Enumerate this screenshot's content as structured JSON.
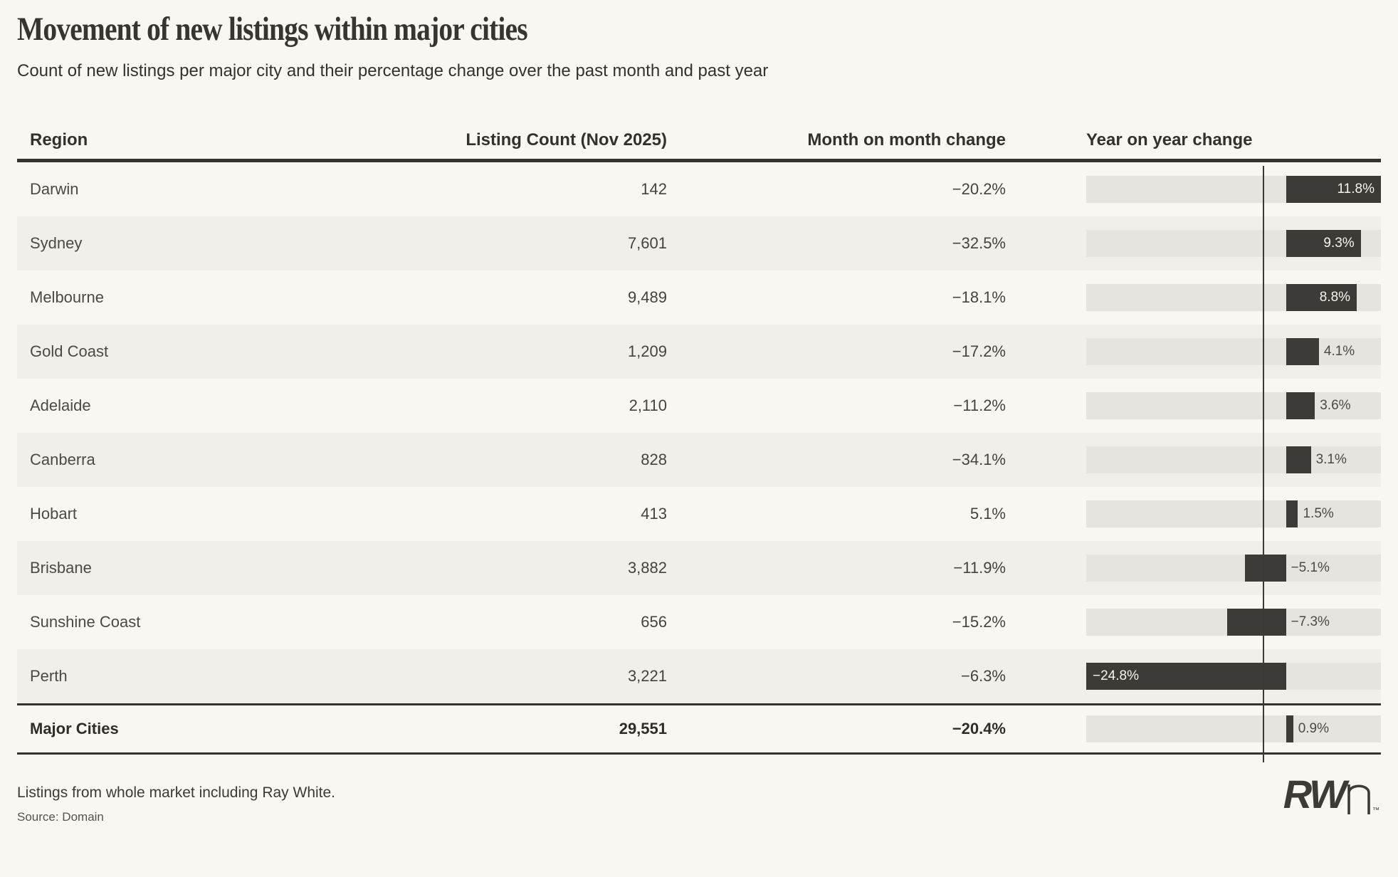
{
  "header": {
    "title": "Movement of new listings within major cities",
    "subtitle": "Count of new listings per major city and their percentage change over the past month and past year"
  },
  "table": {
    "columns": [
      "Region",
      "Listing Count (Nov 2025)",
      "Month on month change",
      "Year on year change"
    ],
    "rows": [
      {
        "region": "Darwin",
        "count": "142",
        "mom": "−20.2%",
        "yoy": 11.8,
        "yoy_label": "11.8%",
        "striped": false
      },
      {
        "region": "Sydney",
        "count": "7,601",
        "mom": "−32.5%",
        "yoy": 9.3,
        "yoy_label": "9.3%",
        "striped": true
      },
      {
        "region": "Melbourne",
        "count": "9,489",
        "mom": "−18.1%",
        "yoy": 8.8,
        "yoy_label": "8.8%",
        "striped": false
      },
      {
        "region": "Gold Coast",
        "count": "1,209",
        "mom": "−17.2%",
        "yoy": 4.1,
        "yoy_label": "4.1%",
        "striped": true
      },
      {
        "region": "Adelaide",
        "count": "2,110",
        "mom": "−11.2%",
        "yoy": 3.6,
        "yoy_label": "3.6%",
        "striped": false
      },
      {
        "region": "Canberra",
        "count": "828",
        "mom": "−34.1%",
        "yoy": 3.1,
        "yoy_label": "3.1%",
        "striped": true
      },
      {
        "region": "Hobart",
        "count": "413",
        "mom": "5.1%",
        "yoy": 1.5,
        "yoy_label": "1.5%",
        "striped": false
      },
      {
        "region": "Brisbane",
        "count": "3,882",
        "mom": "−11.9%",
        "yoy": -5.1,
        "yoy_label": "−5.1%",
        "striped": true
      },
      {
        "region": "Sunshine Coast",
        "count": "656",
        "mom": "−15.2%",
        "yoy": -7.3,
        "yoy_label": "−7.3%",
        "striped": false
      },
      {
        "region": "Perth",
        "count": "3,221",
        "mom": "−6.3%",
        "yoy": -24.8,
        "yoy_label": "−24.8%",
        "striped": true
      }
    ],
    "total_row": {
      "region": "Major Cities",
      "count": "29,551",
      "mom": "−20.4%",
      "yoy": 0.9,
      "yoy_label": "0.9%",
      "striped": false
    }
  },
  "chart_data": {
    "type": "bar",
    "orientation": "horizontal",
    "title": "Year on year change",
    "categories": [
      "Darwin",
      "Sydney",
      "Melbourne",
      "Gold Coast",
      "Adelaide",
      "Canberra",
      "Hobart",
      "Brisbane",
      "Sunshine Coast",
      "Perth",
      "Major Cities"
    ],
    "series": [
      {
        "name": "Listing Count (Nov 2025)",
        "values": [
          142,
          7601,
          9489,
          1209,
          2110,
          828,
          413,
          3882,
          656,
          3221,
          29551
        ]
      },
      {
        "name": "Month on month change (%)",
        "values": [
          -20.2,
          -32.5,
          -18.1,
          -17.2,
          -11.2,
          -34.1,
          5.1,
          -11.9,
          -15.2,
          -6.3,
          -20.4
        ]
      },
      {
        "name": "Year on year change (%)",
        "values": [
          11.8,
          9.3,
          8.8,
          4.1,
          3.6,
          3.1,
          1.5,
          -5.1,
          -7.3,
          -24.8,
          0.9
        ]
      }
    ],
    "bar_series": "Year on year change (%)",
    "xlim": [
      -24.8,
      11.8
    ],
    "grid": false,
    "legend": "none"
  },
  "footer": {
    "note": "Listings from whole market including Ray White.",
    "source": "Source: Domain",
    "logo_bold": "RW",
    "logo_trademark": "™"
  },
  "colors": {
    "background": "#f9f7f1",
    "stripe": "#f0efe9",
    "track": "#e6e4de",
    "bar": "#3d3b37",
    "border": "#35332e",
    "text": "#45433e"
  }
}
